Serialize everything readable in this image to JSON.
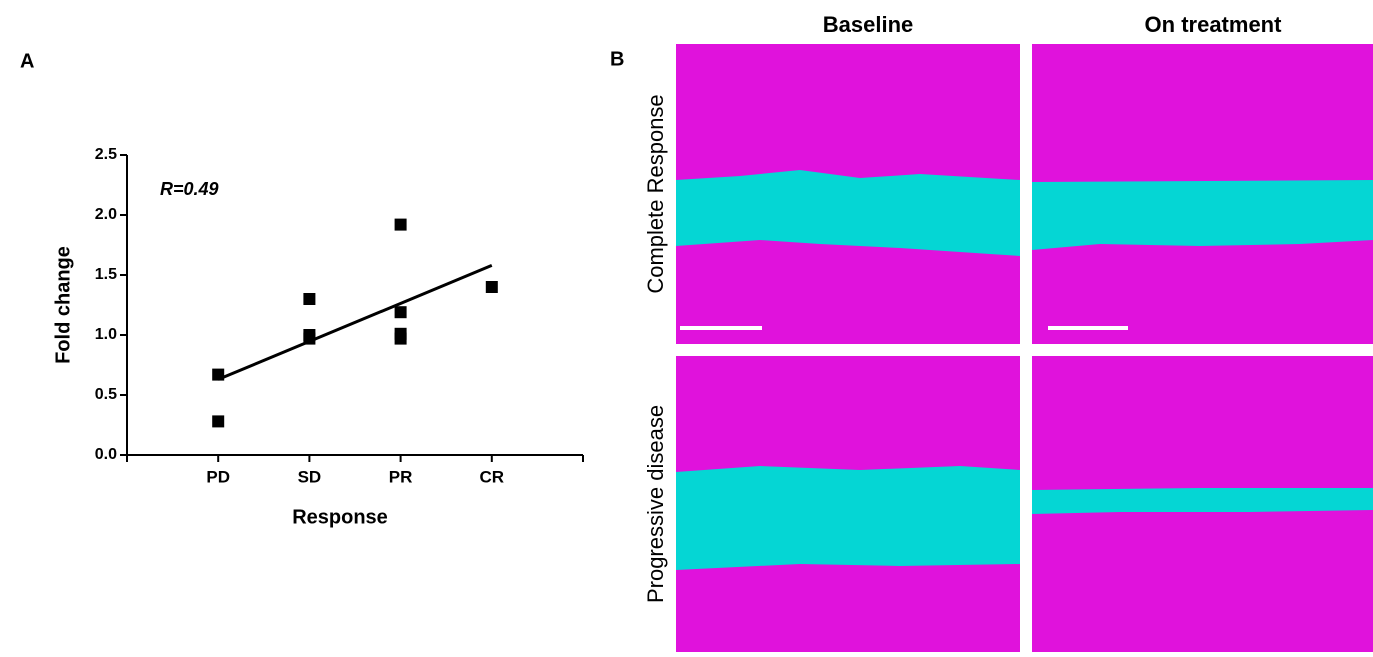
{
  "panel_a_label": "A",
  "panel_b_label": "B",
  "chart_data": {
    "type": "scatter",
    "x_label": "Response",
    "y_label": "Fold change",
    "annotation": "R=0.49",
    "categories": [
      "PD",
      "SD",
      "PR",
      "CR"
    ],
    "points": {
      "x": [
        "PD",
        "PD",
        "SD",
        "SD",
        "SD",
        "PR",
        "PR",
        "PR",
        "PR",
        "CR"
      ],
      "values": [
        0.67,
        0.28,
        1.3,
        1.0,
        0.97,
        1.92,
        1.19,
        1.01,
        0.97,
        1.4
      ],
      "color": "#000000"
    },
    "fit": {
      "x": [
        "PD",
        "CR"
      ],
      "values": [
        0.63,
        1.58
      ],
      "color": "#000000"
    },
    "ylim": [
      0,
      2.5
    ],
    "yticks": [
      {
        "value": 0,
        "label": "0.0"
      },
      {
        "value": 0.5,
        "label": "0.5"
      },
      {
        "value": 1,
        "label": "1.0"
      },
      {
        "value": 1.5,
        "label": "1.5"
      },
      {
        "value": 2,
        "label": "2.0"
      },
      {
        "value": 2.5,
        "label": "2.5"
      }
    ]
  },
  "images": {
    "columns": [
      "Baseline",
      "On treatment"
    ],
    "rows": [
      "Complete Response",
      "Progressive disease"
    ]
  }
}
